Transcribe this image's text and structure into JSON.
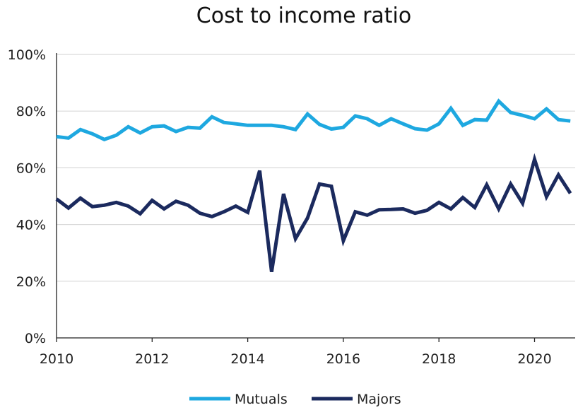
{
  "chart_data": {
    "type": "line",
    "title": "Cost to income ratio",
    "xlabel": "",
    "ylabel": "",
    "xlim": [
      2010,
      2020.85
    ],
    "ylim": [
      0,
      100
    ],
    "x_ticks": [
      2010,
      2012,
      2014,
      2016,
      2018,
      2020
    ],
    "x_tick_labels": [
      "2010",
      "2012",
      "2014",
      "2016",
      "2018",
      "2020"
    ],
    "y_ticks": [
      0,
      20,
      40,
      60,
      80,
      100
    ],
    "y_tick_labels": [
      "0%",
      "20%",
      "40%",
      "60%",
      "80%",
      "100%"
    ],
    "grid": true,
    "legend_position": "bottom",
    "x": [
      2010.0,
      2010.25,
      2010.5,
      2010.75,
      2011.0,
      2011.25,
      2011.5,
      2011.75,
      2012.0,
      2012.25,
      2012.5,
      2012.75,
      2013.0,
      2013.25,
      2013.5,
      2013.75,
      2014.0,
      2014.25,
      2014.5,
      2014.75,
      2015.0,
      2015.25,
      2015.5,
      2015.75,
      2016.0,
      2016.25,
      2016.5,
      2016.75,
      2017.0,
      2017.25,
      2017.5,
      2017.75,
      2018.0,
      2018.25,
      2018.5,
      2018.75,
      2019.0,
      2019.25,
      2019.5,
      2019.75,
      2020.0,
      2020.25,
      2020.5,
      2020.75
    ],
    "series": [
      {
        "name": "Mutuals",
        "color": "#1ea8e0",
        "values": [
          71,
          70.5,
          73.5,
          72,
          70,
          71.5,
          74.5,
          72.3,
          74.5,
          74.8,
          72.8,
          74.3,
          74,
          78,
          76,
          75.5,
          75,
          75,
          75,
          74.5,
          73.5,
          79,
          75.3,
          73.7,
          74.3,
          78.3,
          77.3,
          75,
          77.3,
          75.5,
          73.8,
          73.3,
          75.5,
          81,
          75,
          77,
          76.8,
          83.5,
          79.5,
          78.5,
          77.3,
          80.8,
          77,
          76.5
        ]
      },
      {
        "name": "Majors",
        "color": "#1b2a5e",
        "values": [
          49,
          45.8,
          49.3,
          46.3,
          46.8,
          47.8,
          46.5,
          43.8,
          48.5,
          45.5,
          48.2,
          46.8,
          44,
          42.8,
          44.5,
          46.5,
          44.3,
          59,
          23.3,
          50.8,
          35,
          42.3,
          54.3,
          53.5,
          34.3,
          44.5,
          43.3,
          45.2,
          45.3,
          45.5,
          44,
          45,
          47.8,
          45.5,
          49.5,
          46,
          54,
          45.5,
          54.3,
          47.5,
          63,
          49.8,
          57.5,
          51
        ]
      }
    ]
  }
}
